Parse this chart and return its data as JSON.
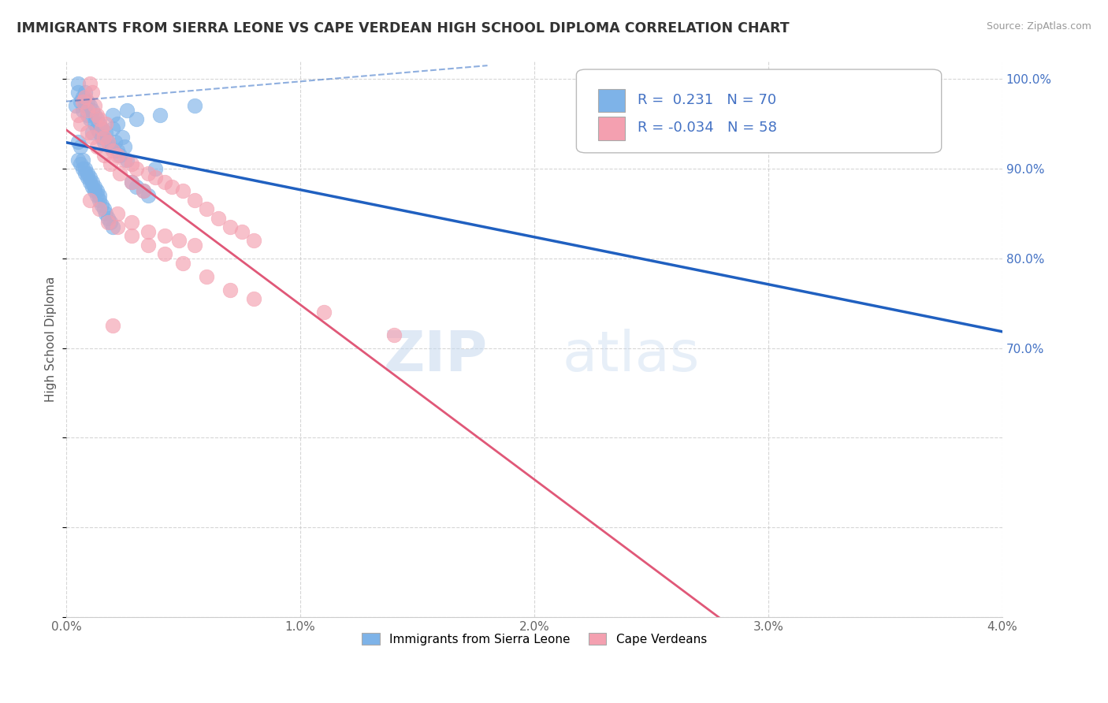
{
  "title": "IMMIGRANTS FROM SIERRA LEONE VS CAPE VERDEAN HIGH SCHOOL DIPLOMA CORRELATION CHART",
  "source": "Source: ZipAtlas.com",
  "ylabel_label": "High School Diploma",
  "legend_blue_label": "Immigrants from Sierra Leone",
  "legend_pink_label": "Cape Verdeans",
  "R_blue": 0.231,
  "N_blue": 70,
  "R_pink": -0.034,
  "N_pink": 58,
  "blue_color": "#7EB3E8",
  "pink_color": "#F4A0B0",
  "trendline_blue": "#2060C0",
  "trendline_pink": "#E05878",
  "x_min": 0.0,
  "x_max": 4.0,
  "y_min": 40.0,
  "y_max": 102.0,
  "blue_scatter_x": [
    0.04,
    0.05,
    0.05,
    0.06,
    0.07,
    0.07,
    0.08,
    0.08,
    0.09,
    0.09,
    0.1,
    0.1,
    0.11,
    0.11,
    0.12,
    0.12,
    0.13,
    0.13,
    0.14,
    0.14,
    0.15,
    0.15,
    0.16,
    0.17,
    0.18,
    0.19,
    0.2,
    0.2,
    0.21,
    0.22,
    0.23,
    0.24,
    0.25,
    0.26,
    0.28,
    0.3,
    0.33,
    0.35,
    0.38,
    0.05,
    0.06,
    0.07,
    0.08,
    0.09,
    0.1,
    0.11,
    0.12,
    0.13,
    0.14,
    0.15,
    0.16,
    0.17,
    0.18,
    0.19,
    0.2,
    0.05,
    0.06,
    0.07,
    0.08,
    0.09,
    0.1,
    0.11,
    0.12,
    0.13,
    0.14,
    0.22,
    0.26,
    0.3,
    0.4,
    0.55
  ],
  "blue_scatter_y": [
    97.0,
    98.5,
    99.5,
    97.5,
    96.5,
    98.0,
    97.0,
    98.5,
    96.0,
    97.5,
    95.5,
    97.0,
    94.0,
    96.5,
    95.0,
    96.0,
    94.5,
    95.5,
    94.0,
    95.0,
    93.5,
    94.5,
    93.0,
    94.0,
    93.0,
    92.5,
    94.5,
    96.0,
    93.0,
    92.0,
    91.5,
    93.5,
    92.5,
    91.0,
    88.5,
    88.0,
    87.5,
    87.0,
    90.0,
    91.0,
    90.5,
    90.0,
    89.5,
    89.0,
    88.5,
    88.0,
    87.5,
    87.0,
    86.5,
    86.0,
    85.5,
    85.0,
    84.5,
    84.0,
    83.5,
    93.0,
    92.5,
    91.0,
    90.0,
    89.5,
    89.0,
    88.5,
    88.0,
    87.5,
    87.0,
    95.0,
    96.5,
    95.5,
    96.0,
    97.0
  ],
  "pink_scatter_x": [
    0.05,
    0.06,
    0.07,
    0.08,
    0.09,
    0.1,
    0.11,
    0.12,
    0.13,
    0.14,
    0.15,
    0.16,
    0.17,
    0.18,
    0.2,
    0.22,
    0.25,
    0.28,
    0.3,
    0.35,
    0.38,
    0.42,
    0.45,
    0.5,
    0.55,
    0.6,
    0.65,
    0.7,
    0.75,
    0.8,
    0.09,
    0.11,
    0.13,
    0.16,
    0.19,
    0.23,
    0.28,
    0.33,
    0.22,
    0.28,
    0.35,
    0.42,
    0.48,
    0.55,
    0.1,
    0.14,
    0.18,
    0.22,
    0.28,
    0.35,
    0.42,
    0.5,
    0.6,
    0.7,
    0.8,
    1.1,
    1.4,
    0.2
  ],
  "pink_scatter_y": [
    96.0,
    95.0,
    97.5,
    98.0,
    96.5,
    99.5,
    98.5,
    97.0,
    96.0,
    95.5,
    94.5,
    93.5,
    95.0,
    93.0,
    92.0,
    91.5,
    91.0,
    90.5,
    90.0,
    89.5,
    89.0,
    88.5,
    88.0,
    87.5,
    86.5,
    85.5,
    84.5,
    83.5,
    83.0,
    82.0,
    94.0,
    93.5,
    92.5,
    91.5,
    90.5,
    89.5,
    88.5,
    87.5,
    85.0,
    84.0,
    83.0,
    82.5,
    82.0,
    81.5,
    86.5,
    85.5,
    84.0,
    83.5,
    82.5,
    81.5,
    80.5,
    79.5,
    78.0,
    76.5,
    75.5,
    74.0,
    71.5,
    72.5
  ]
}
